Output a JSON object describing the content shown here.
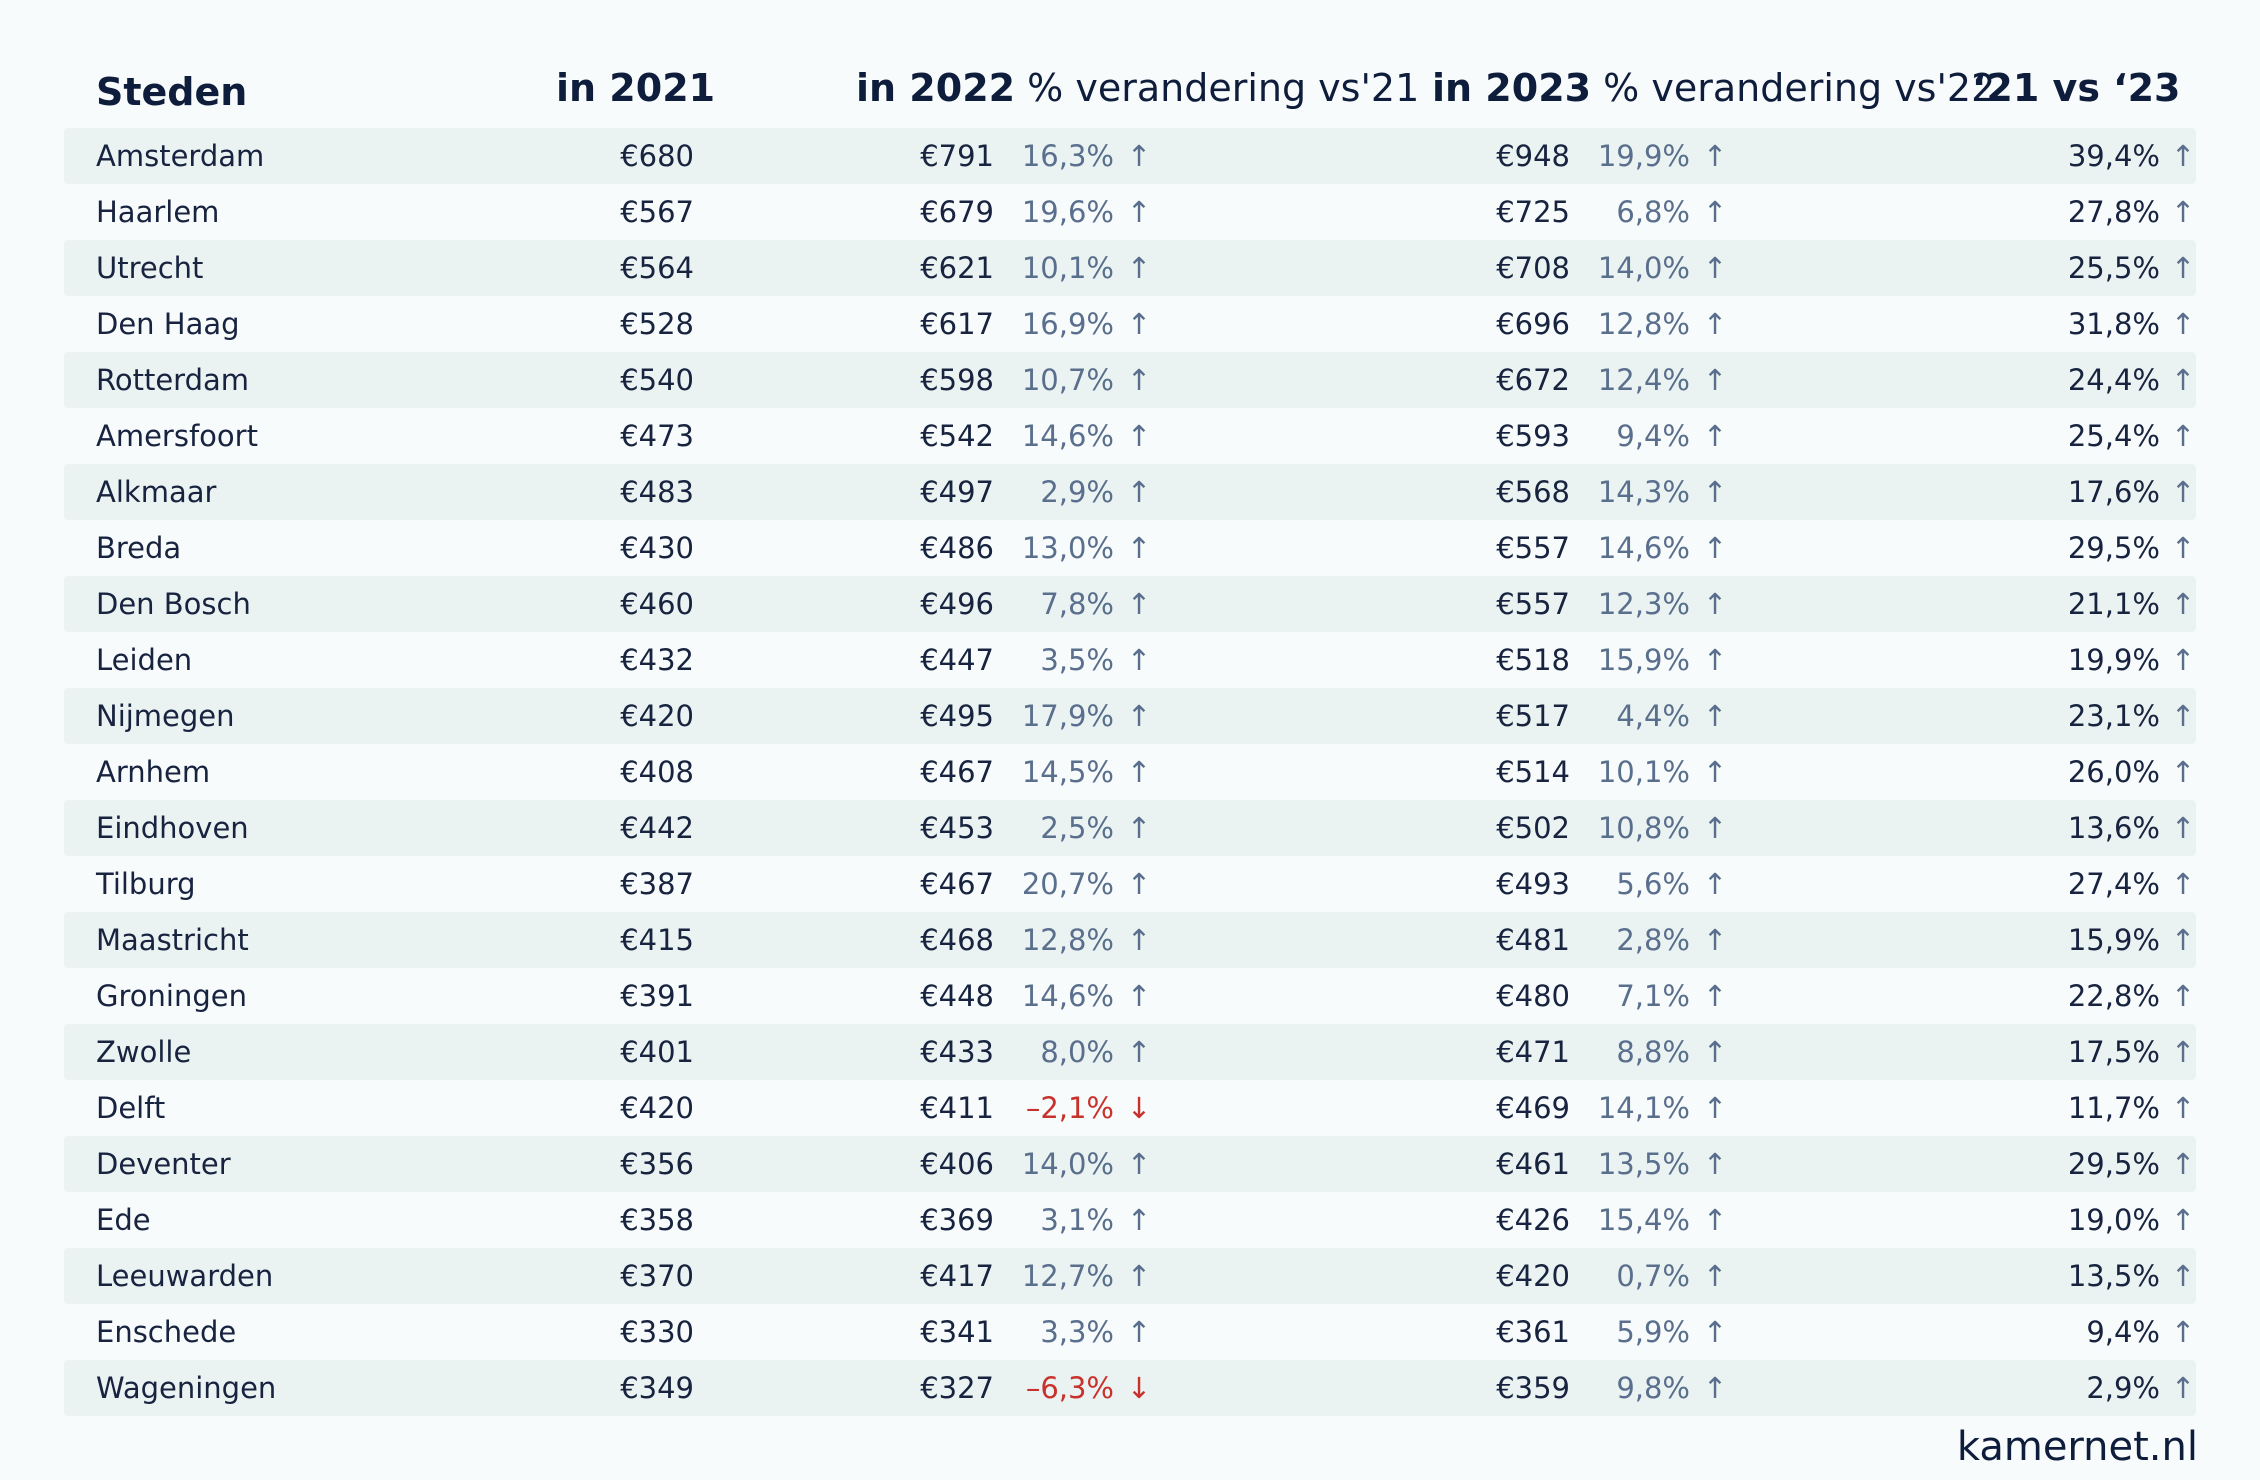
{
  "header": {
    "city": "Steden",
    "y2021": "in 2021",
    "y2022": "in 2022",
    "change22": "% verandering vs'21",
    "y2023": "in 2023",
    "change23": "% verandering vs'22",
    "total": "‘21 vs ‘23"
  },
  "rows": [
    {
      "city": "Amsterdam",
      "v21": "€680",
      "v22": "€791",
      "p22": "16,3%",
      "a22": "↑",
      "v23": "€948",
      "p23": "19,9%",
      "a23": "↑",
      "tot": "39,4%",
      "atot": "↑"
    },
    {
      "city": "Haarlem",
      "v21": "€567",
      "v22": "€679",
      "p22": "19,6%",
      "a22": "↑",
      "v23": "€725",
      "p23": "6,8%",
      "a23": "↑",
      "tot": "27,8%",
      "atot": "↑"
    },
    {
      "city": "Utrecht",
      "v21": "€564",
      "v22": "€621",
      "p22": "10,1%",
      "a22": "↑",
      "v23": "€708",
      "p23": "14,0%",
      "a23": "↑",
      "tot": "25,5%",
      "atot": "↑"
    },
    {
      "city": "Den Haag",
      "v21": "€528",
      "v22": "€617",
      "p22": "16,9%",
      "a22": "↑",
      "v23": "€696",
      "p23": "12,8%",
      "a23": "↑",
      "tot": "31,8%",
      "atot": "↑"
    },
    {
      "city": "Rotterdam",
      "v21": "€540",
      "v22": "€598",
      "p22": "10,7%",
      "a22": "↑",
      "v23": "€672",
      "p23": "12,4%",
      "a23": "↑",
      "tot": "24,4%",
      "atot": "↑"
    },
    {
      "city": "Amersfoort",
      "v21": "€473",
      "v22": "€542",
      "p22": "14,6%",
      "a22": "↑",
      "v23": "€593",
      "p23": "9,4%",
      "a23": "↑",
      "tot": "25,4%",
      "atot": "↑"
    },
    {
      "city": "Alkmaar",
      "v21": "€483",
      "v22": "€497",
      "p22": "2,9%",
      "a22": "↑",
      "v23": "€568",
      "p23": "14,3%",
      "a23": "↑",
      "tot": "17,6%",
      "atot": "↑"
    },
    {
      "city": "Breda",
      "v21": "€430",
      "v22": "€486",
      "p22": "13,0%",
      "a22": "↑",
      "v23": "€557",
      "p23": "14,6%",
      "a23": "↑",
      "tot": "29,5%",
      "atot": "↑"
    },
    {
      "city": "Den Bosch",
      "v21": "€460",
      "v22": "€496",
      "p22": "7,8%",
      "a22": "↑",
      "v23": "€557",
      "p23": "12,3%",
      "a23": "↑",
      "tot": "21,1%",
      "atot": "↑"
    },
    {
      "city": "Leiden",
      "v21": "€432",
      "v22": "€447",
      "p22": "3,5%",
      "a22": "↑",
      "v23": "€518",
      "p23": "15,9%",
      "a23": "↑",
      "tot": "19,9%",
      "atot": "↑"
    },
    {
      "city": "Nijmegen",
      "v21": "€420",
      "v22": "€495",
      "p22": "17,9%",
      "a22": "↑",
      "v23": "€517",
      "p23": "4,4%",
      "a23": "↑",
      "tot": "23,1%",
      "atot": "↑"
    },
    {
      "city": "Arnhem",
      "v21": "€408",
      "v22": "€467",
      "p22": "14,5%",
      "a22": "↑",
      "v23": "€514",
      "p23": "10,1%",
      "a23": "↑",
      "tot": "26,0%",
      "atot": "↑"
    },
    {
      "city": "Eindhoven",
      "v21": "€442",
      "v22": "€453",
      "p22": "2,5%",
      "a22": "↑",
      "v23": "€502",
      "p23": "10,8%",
      "a23": "↑",
      "tot": "13,6%",
      "atot": "↑"
    },
    {
      "city": "Tilburg",
      "v21": "€387",
      "v22": "€467",
      "p22": "20,7%",
      "a22": "↑",
      "v23": "€493",
      "p23": "5,6%",
      "a23": "↑",
      "tot": "27,4%",
      "atot": "↑"
    },
    {
      "city": "Maastricht",
      "v21": "€415",
      "v22": "€468",
      "p22": "12,8%",
      "a22": "↑",
      "v23": "€481",
      "p23": "2,8%",
      "a23": "↑",
      "tot": "15,9%",
      "atot": "↑"
    },
    {
      "city": "Groningen",
      "v21": "€391",
      "v22": "€448",
      "p22": "14,6%",
      "a22": "↑",
      "v23": "€480",
      "p23": "7,1%",
      "a23": "↑",
      "tot": "22,8%",
      "atot": "↑"
    },
    {
      "city": "Zwolle",
      "v21": "€401",
      "v22": "€433",
      "p22": "8,0%",
      "a22": "↑",
      "v23": "€471",
      "p23": "8,8%",
      "a23": "↑",
      "tot": "17,5%",
      "atot": "↑"
    },
    {
      "city": "Delft",
      "v21": "€420",
      "v22": "€411",
      "p22": "–2,1%",
      "a22": "↓",
      "neg22": true,
      "v23": "€469",
      "p23": "14,1%",
      "a23": "↑",
      "tot": "11,7%",
      "atot": "↑"
    },
    {
      "city": "Deventer",
      "v21": "€356",
      "v22": "€406",
      "p22": "14,0%",
      "a22": "↑",
      "v23": "€461",
      "p23": "13,5%",
      "a23": "↑",
      "tot": "29,5%",
      "atot": "↑"
    },
    {
      "city": "Ede",
      "v21": "€358",
      "v22": "€369",
      "p22": "3,1%",
      "a22": "↑",
      "v23": "€426",
      "p23": "15,4%",
      "a23": "↑",
      "tot": "19,0%",
      "atot": "↑"
    },
    {
      "city": "Leeuwarden",
      "v21": "€370",
      "v22": "€417",
      "p22": "12,7%",
      "a22": "↑",
      "v23": "€420",
      "p23": "0,7%",
      "a23": "↑",
      "tot": "13,5%",
      "atot": "↑"
    },
    {
      "city": "Enschede",
      "v21": "€330",
      "v22": "€341",
      "p22": "3,3%",
      "a22": "↑",
      "v23": "€361",
      "p23": "5,9%",
      "a23": "↑",
      "tot": "9,4%",
      "atot": "↑"
    },
    {
      "city": "Wageningen",
      "v21": "€349",
      "v22": "€327",
      "p22": "–6,3%",
      "a22": "↓",
      "neg22": true,
      "v23": "€359",
      "p23": "9,8%",
      "a23": "↑",
      "tot": "2,9%",
      "atot": "↑"
    }
  ],
  "colors": {
    "text": "#0f1d3c",
    "muted": "#5a6f8d",
    "negative": "#c8322d",
    "stripe": "#ebf3f2",
    "background": "#f8fbfb"
  },
  "brand": "kamernet.nl"
}
